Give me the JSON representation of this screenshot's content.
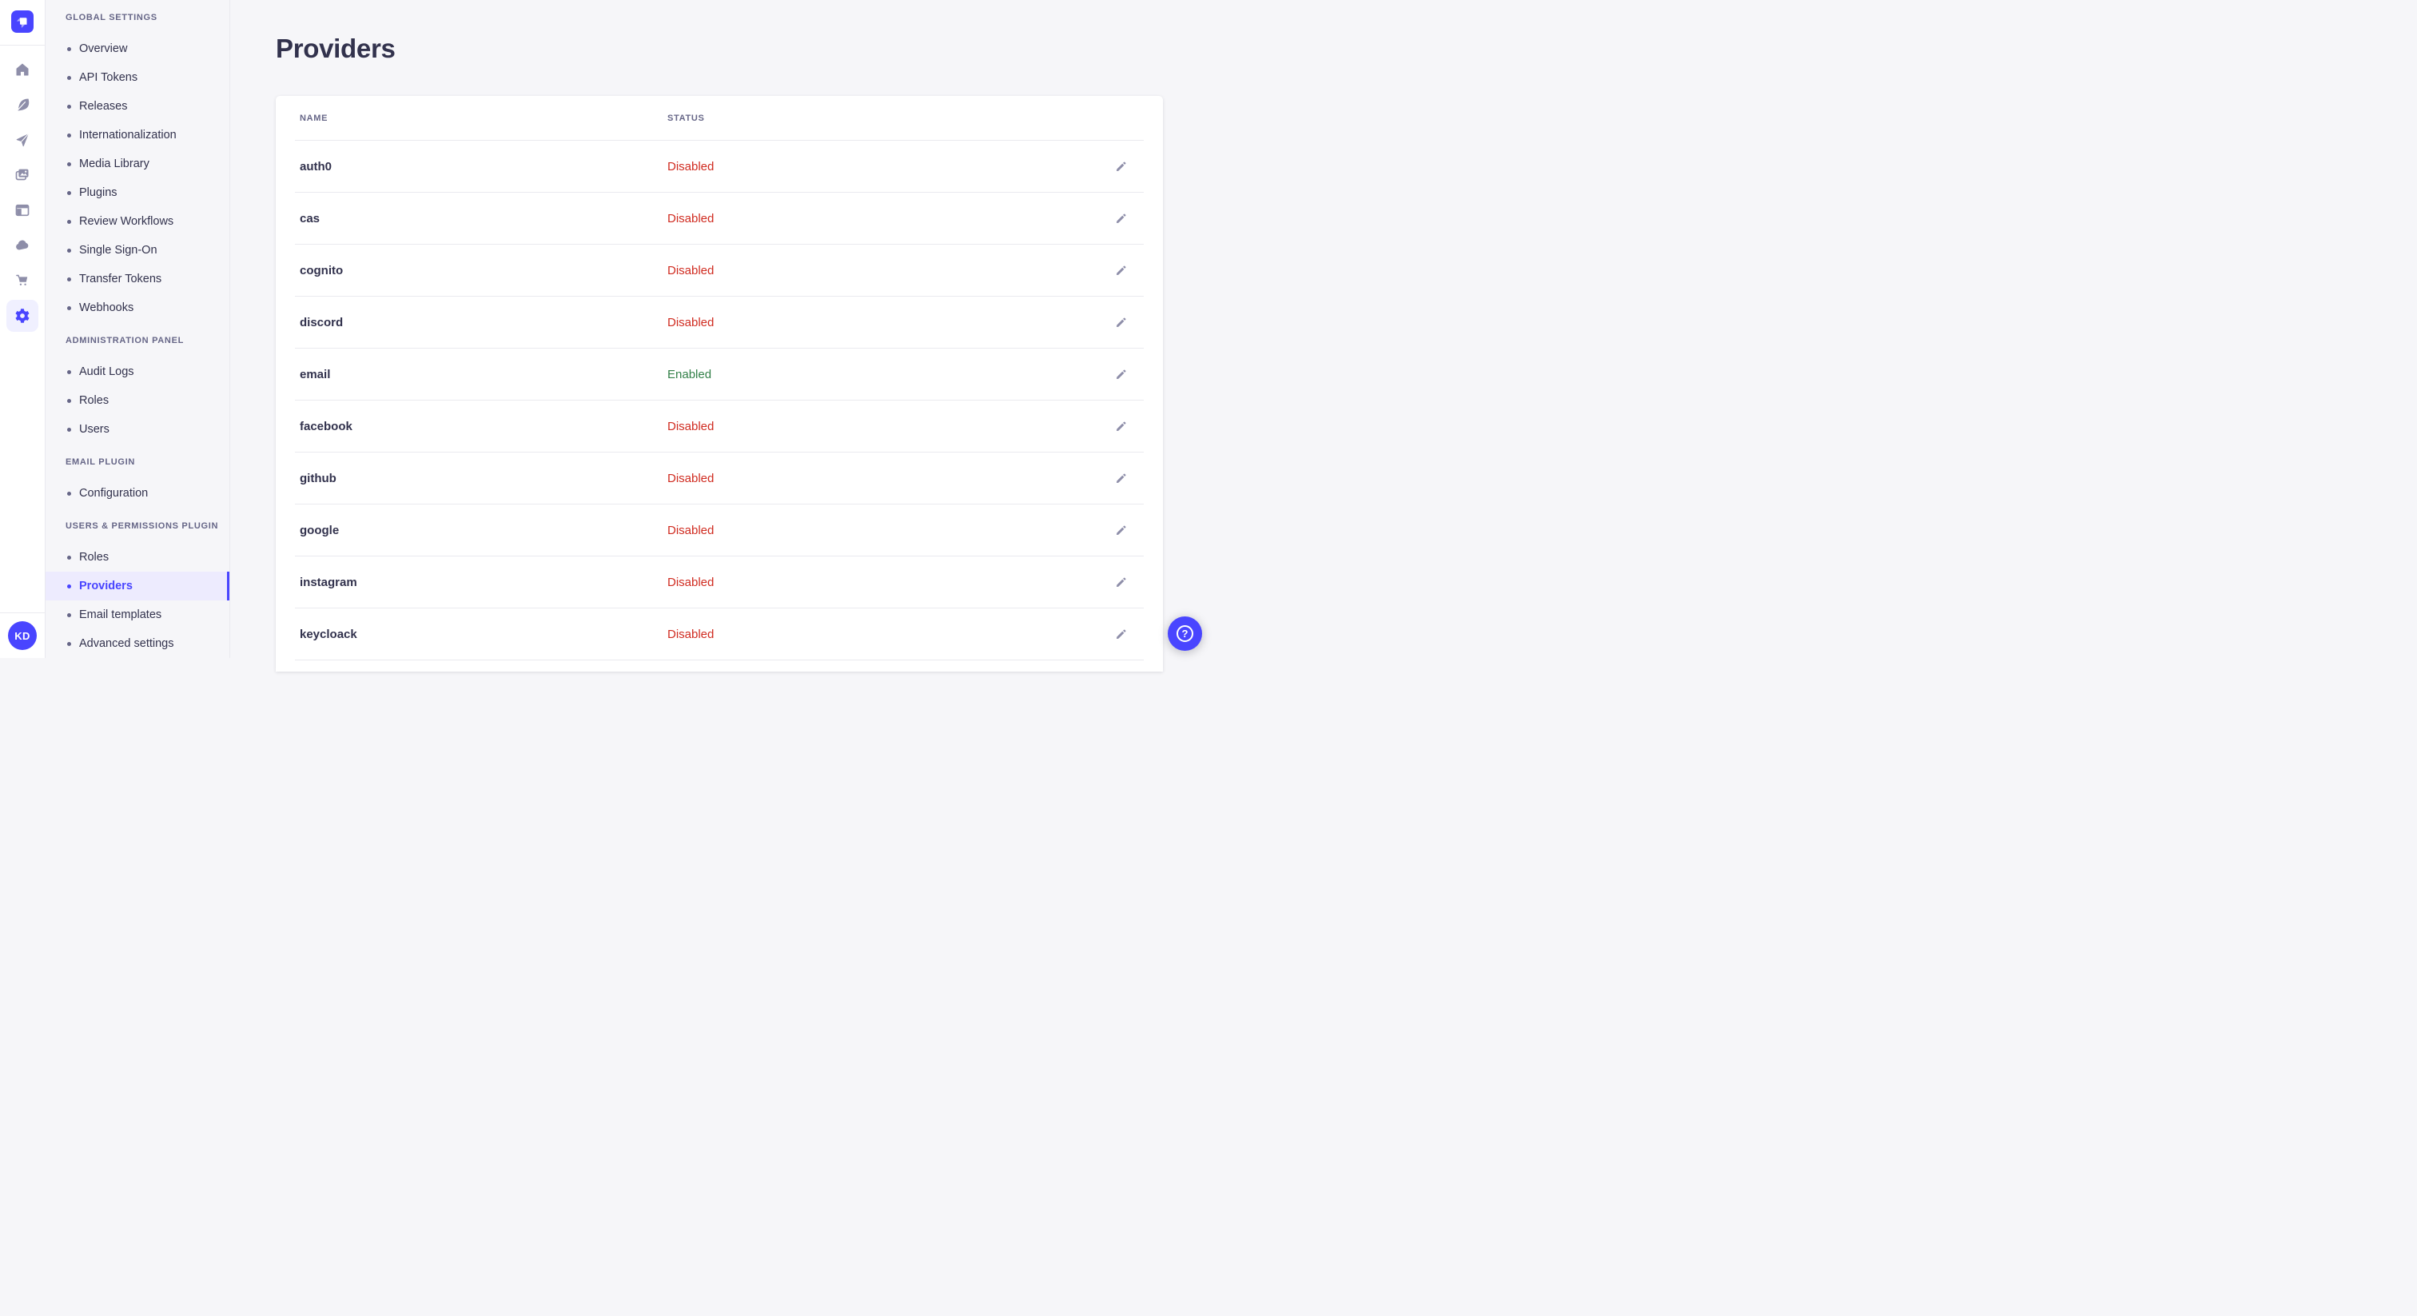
{
  "icon_rail": {
    "logo_name": "strapi-workspace-logo",
    "items": [
      {
        "icon": "home"
      },
      {
        "icon": "feather"
      },
      {
        "icon": "send"
      },
      {
        "icon": "media"
      },
      {
        "icon": "layout"
      },
      {
        "icon": "cloud"
      },
      {
        "icon": "cart"
      },
      {
        "icon": "settings",
        "active": true
      }
    ],
    "avatar": {
      "initials": "KD"
    }
  },
  "sidebar": {
    "sections": [
      {
        "label": "GLOBAL SETTINGS",
        "items": [
          {
            "label": "Overview"
          },
          {
            "label": "API Tokens"
          },
          {
            "label": "Releases"
          },
          {
            "label": "Internationalization"
          },
          {
            "label": "Media Library"
          },
          {
            "label": "Plugins"
          },
          {
            "label": "Review Workflows"
          },
          {
            "label": "Single Sign-On"
          },
          {
            "label": "Transfer Tokens"
          },
          {
            "label": "Webhooks"
          }
        ]
      },
      {
        "label": "ADMINISTRATION PANEL",
        "items": [
          {
            "label": "Audit Logs"
          },
          {
            "label": "Roles"
          },
          {
            "label": "Users"
          }
        ]
      },
      {
        "label": "EMAIL PLUGIN",
        "items": [
          {
            "label": "Configuration"
          }
        ]
      },
      {
        "label": "USERS & PERMISSIONS PLUGIN",
        "items": [
          {
            "label": "Roles"
          },
          {
            "label": "Providers",
            "active": true
          },
          {
            "label": "Email templates"
          },
          {
            "label": "Advanced settings"
          }
        ]
      }
    ]
  },
  "main": {
    "title": "Providers",
    "table": {
      "columns": [
        "NAME",
        "STATUS"
      ],
      "rows": [
        {
          "name": "auth0",
          "status": "Disabled",
          "status_color": "danger"
        },
        {
          "name": "cas",
          "status": "Disabled",
          "status_color": "danger"
        },
        {
          "name": "cognito",
          "status": "Disabled",
          "status_color": "danger"
        },
        {
          "name": "discord",
          "status": "Disabled",
          "status_color": "danger"
        },
        {
          "name": "email",
          "status": "Enabled",
          "status_color": "success"
        },
        {
          "name": "facebook",
          "status": "Disabled",
          "status_color": "danger"
        },
        {
          "name": "github",
          "status": "Disabled",
          "status_color": "danger"
        },
        {
          "name": "google",
          "status": "Disabled",
          "status_color": "danger"
        },
        {
          "name": "instagram",
          "status": "Disabled",
          "status_color": "danger"
        },
        {
          "name": "keycloack",
          "status": "Disabled",
          "status_color": "danger"
        }
      ]
    }
  },
  "help_button": {
    "glyph": "?"
  },
  "colors": {
    "primary": "#4945FF",
    "primary_active_bg": "#EDEBFE",
    "rail_active_bg": "#F0F0FF",
    "danger": "#D02B20",
    "success": "#328048",
    "text_dark": "#32324D",
    "text_muted": "#666687",
    "icon_grey": "#8E8EA9",
    "border": "#EAEAEF",
    "page_bg": "#F6F6F9",
    "card_bg": "#FFFFFF"
  }
}
